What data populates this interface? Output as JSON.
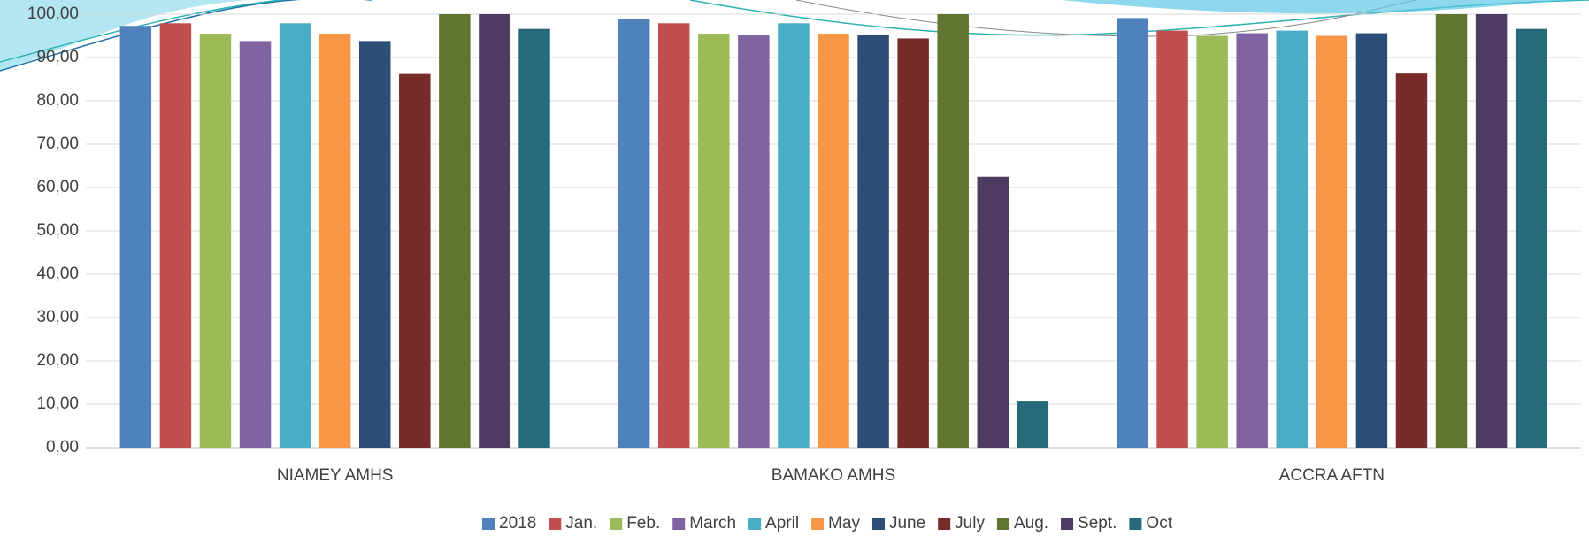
{
  "chart_data": {
    "type": "bar",
    "categories": [
      "NIAMEY AMHS",
      "BAMAKO AMHS",
      "ACCRA AFTN"
    ],
    "series": [
      {
        "name": "2018",
        "color": "#4f81bd",
        "values": [
          97.3,
          98.9,
          99.1
        ]
      },
      {
        "name": "Jan.",
        "color": "#c0504d",
        "values": [
          97.9,
          97.9,
          96.2
        ]
      },
      {
        "name": "Feb.",
        "color": "#9bbb59",
        "values": [
          95.5,
          95.5,
          95.0
        ]
      },
      {
        "name": "March",
        "color": "#8064a2",
        "values": [
          93.8,
          95.1,
          95.6
        ]
      },
      {
        "name": "April",
        "color": "#4bacc6",
        "values": [
          97.9,
          97.9,
          96.2
        ]
      },
      {
        "name": "May",
        "color": "#f79646",
        "values": [
          95.5,
          95.5,
          95.0
        ]
      },
      {
        "name": "June",
        "color": "#2c4d75",
        "values": [
          93.8,
          95.1,
          95.6
        ]
      },
      {
        "name": "July",
        "color": "#772c2a",
        "values": [
          86.2,
          94.4,
          86.3
        ]
      },
      {
        "name": "Aug.",
        "color": "#5f7530",
        "values": [
          100,
          100,
          100
        ]
      },
      {
        "name": "Sept.",
        "color": "#4d3b62",
        "values": [
          100,
          62.5,
          100
        ]
      },
      {
        "name": "Oct",
        "color": "#276a7c",
        "values": [
          96.6,
          10.8,
          96.6
        ]
      }
    ],
    "ylim": [
      0,
      100
    ],
    "yticks": [
      {
        "value": 0,
        "label": "0,00"
      },
      {
        "value": 10,
        "label": "10,00"
      },
      {
        "value": 20,
        "label": "20,00"
      },
      {
        "value": 30,
        "label": "30,00"
      },
      {
        "value": 40,
        "label": "40,00"
      },
      {
        "value": 50,
        "label": "50,00"
      },
      {
        "value": 60,
        "label": "60,00"
      },
      {
        "value": 70,
        "label": "70,00"
      },
      {
        "value": 80,
        "label": "80,00"
      },
      {
        "value": 90,
        "label": "90,00"
      },
      {
        "value": 100,
        "label": "100,00"
      }
    ],
    "grid": true,
    "legend": "bottom"
  }
}
